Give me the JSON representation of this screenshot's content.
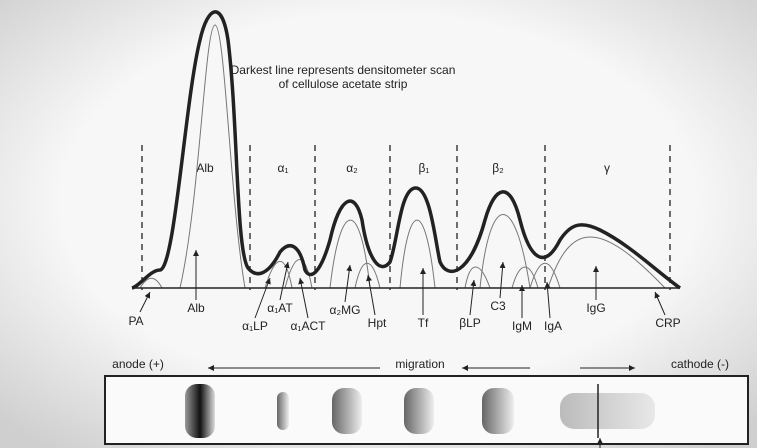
{
  "header": {
    "lines": [
      "Darkest line represents densitometer scan",
      "of cellulose acetate strip"
    ]
  },
  "regions": [
    "Alb",
    "α₁",
    "α₂",
    "β₁",
    "β₂",
    "γ"
  ],
  "peaks": [
    "PA",
    "Alb",
    "α₁LP",
    "α₁AT",
    "α₁ACT",
    "α₂MG",
    "Hpt",
    "Tf",
    "βLP",
    "C3",
    "IgM",
    "IgA",
    "IgG",
    "CRP"
  ],
  "strip": {
    "anode": "anode (+)",
    "migration": "migration",
    "cathode": "cathode (-)"
  }
}
